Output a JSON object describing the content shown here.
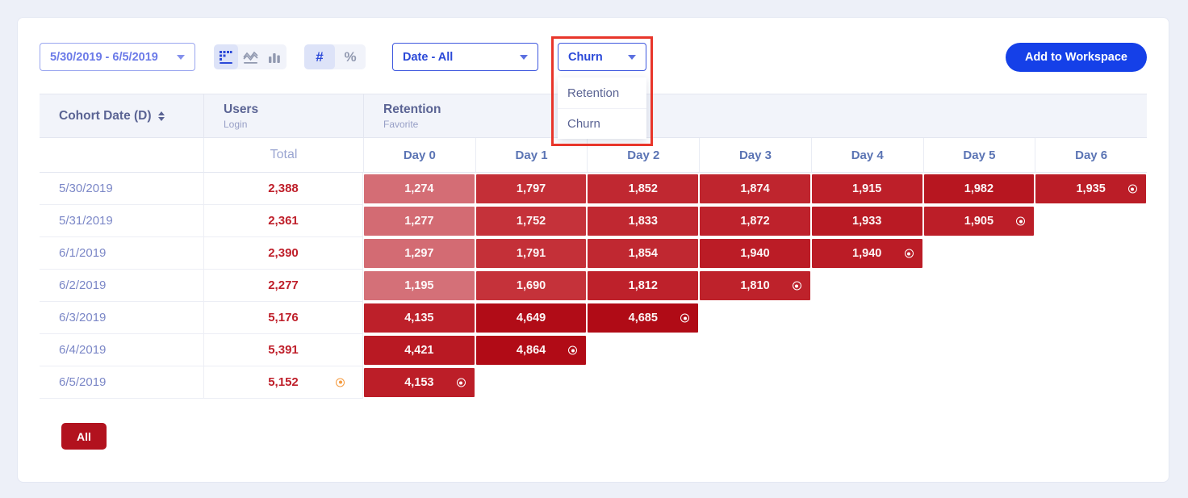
{
  "toolbar": {
    "date_range": "5/30/2019 - 6/5/2019",
    "view_toggle": {
      "options": [
        "retention-grid",
        "line-chart",
        "bar-chart"
      ],
      "selected": "retention-grid"
    },
    "format_toggle": {
      "options": [
        "#",
        "%"
      ],
      "selected": "#",
      "number_label": "#",
      "percent_label": "%"
    },
    "date_filter": "Date - All",
    "metric_dropdown": {
      "value": "Churn",
      "options": [
        "Retention",
        "Churn"
      ],
      "open": true
    },
    "add_to_workspace_label": "Add to Workspace"
  },
  "table": {
    "group_headers": {
      "cohort": {
        "title": "Cohort Date (D)"
      },
      "users": {
        "title": "Users",
        "subtitle": "Login"
      },
      "retention": {
        "title": "Retention",
        "subtitle": "Favorite"
      }
    },
    "total_header": "Total",
    "day_headers": [
      "Day 0",
      "Day 1",
      "Day 2",
      "Day 3",
      "Day 4",
      "Day 5",
      "Day 6"
    ],
    "rows": [
      {
        "date": "5/30/2019",
        "total": 2388,
        "days": [
          1274,
          1797,
          1852,
          1874,
          1915,
          1982,
          1935
        ]
      },
      {
        "date": "5/31/2019",
        "total": 2361,
        "days": [
          1277,
          1752,
          1833,
          1872,
          1933,
          1905
        ]
      },
      {
        "date": "6/1/2019",
        "total": 2390,
        "days": [
          1297,
          1791,
          1854,
          1940,
          1940
        ]
      },
      {
        "date": "6/2/2019",
        "total": 2277,
        "days": [
          1195,
          1690,
          1812,
          1810
        ]
      },
      {
        "date": "6/3/2019",
        "total": 5176,
        "days": [
          4135,
          4649,
          4685
        ]
      },
      {
        "date": "6/4/2019",
        "total": 5391,
        "days": [
          4421,
          4864
        ]
      },
      {
        "date": "6/5/2019",
        "total": 5152,
        "total_marked": true,
        "days": [
          4153
        ]
      }
    ],
    "all_button_label": "All"
  },
  "colors": {
    "accent_blue": "#2b49d8",
    "add_button_blue": "#1540e8",
    "annotation_red": "#e8352a",
    "all_button_red": "#b2121e",
    "total_text_red": "#bf1f2a",
    "heat_scale": [
      {
        "ratio": 0.5,
        "rgb": [
          214,
          119,
          127
        ]
      },
      {
        "ratio": 0.75,
        "rgb": [
          196,
          48,
          56
        ]
      },
      {
        "ratio": 0.8,
        "rgb": [
          189,
          32,
          42
        ]
      },
      {
        "ratio": 0.83,
        "rgb": [
          183,
          22,
          32
        ]
      },
      {
        "ratio": 0.91,
        "rgb": [
          176,
          10,
          21
        ]
      }
    ]
  }
}
